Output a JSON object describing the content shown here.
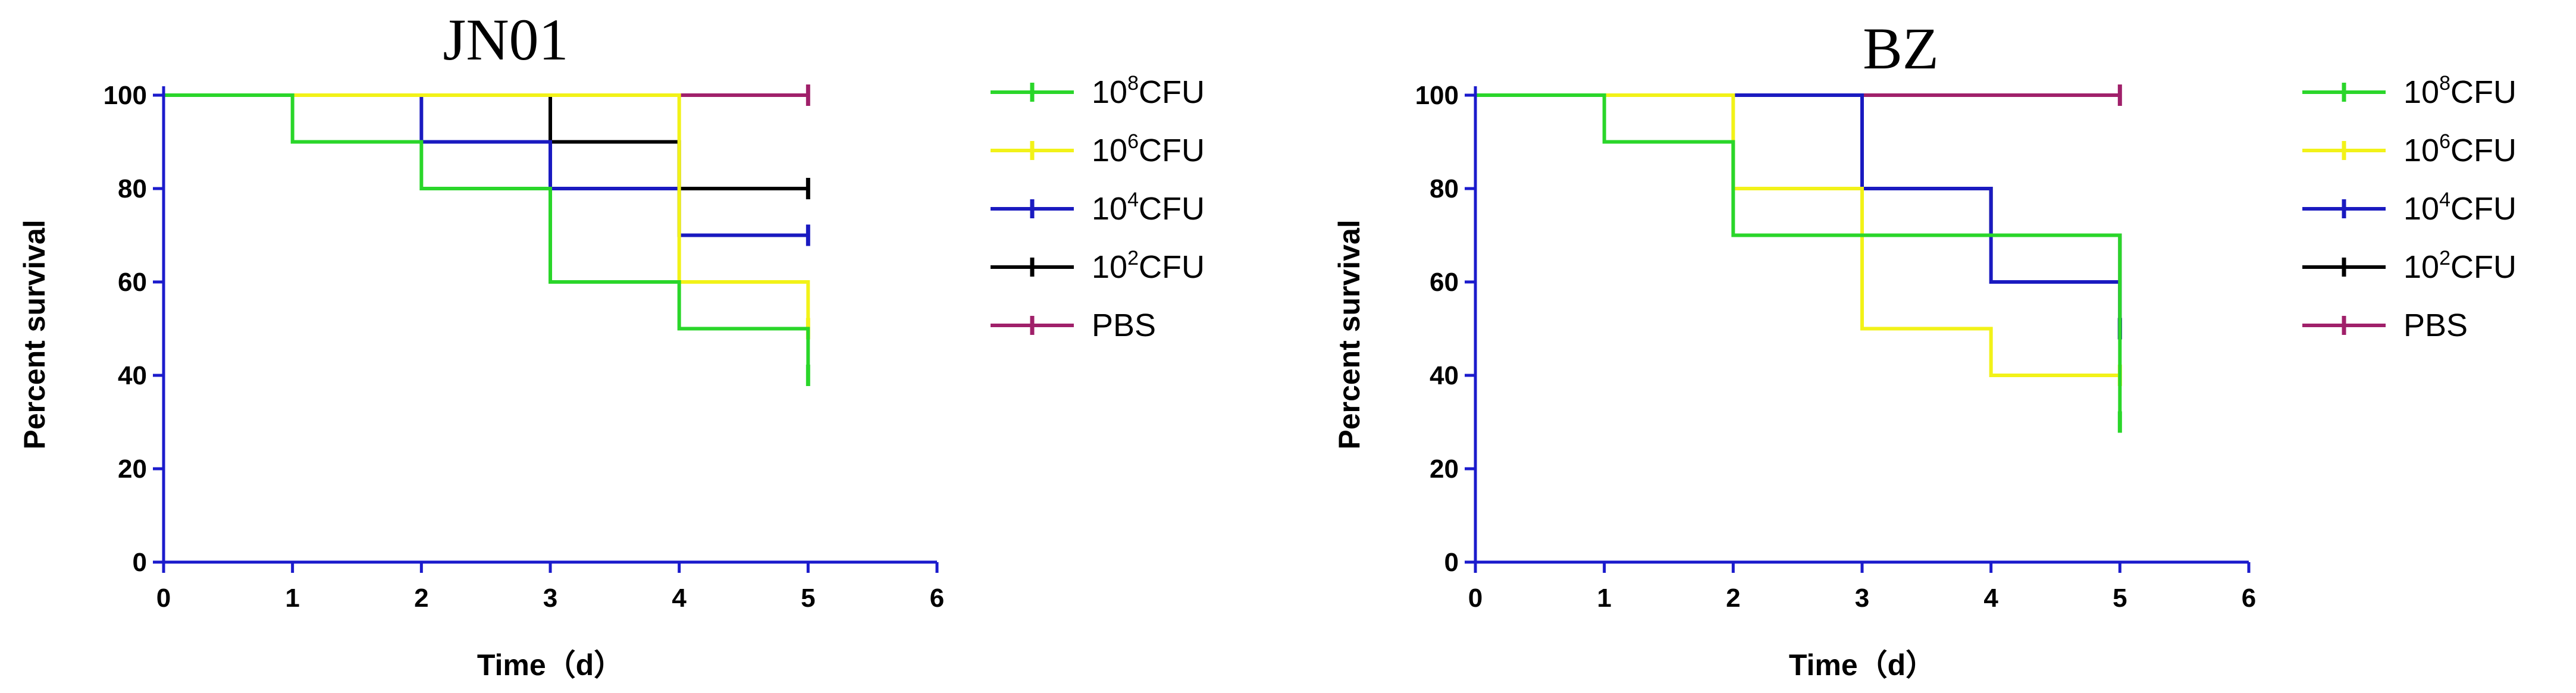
{
  "colors": {
    "axis": "#1b1bcc",
    "10^8": "#2ad62a",
    "10^6": "#f2f218",
    "10^4": "#1a1ac0",
    "10^2": "#000000",
    "PBS": "#a0206a"
  },
  "chart_data": [
    {
      "type": "line",
      "step": true,
      "title": "JN01",
      "xlabel": "Time（d）",
      "ylabel": "Percent survival",
      "xlim": [
        0,
        6
      ],
      "ylim": [
        0,
        100
      ],
      "xticks": [
        "0",
        "1",
        "2",
        "3",
        "4",
        "5",
        "6"
      ],
      "yticks": [
        "0",
        "20",
        "40",
        "60",
        "80",
        "100"
      ],
      "legend_position": "right",
      "series": [
        {
          "key": "10^8",
          "base": "10",
          "exp": "8",
          "unit": "CFU",
          "x": [
            0,
            1,
            2,
            3,
            4,
            5
          ],
          "y": [
            100,
            90,
            80,
            60,
            50,
            40
          ]
        },
        {
          "key": "10^6",
          "base": "10",
          "exp": "6",
          "unit": "CFU",
          "x": [
            0,
            4,
            5
          ],
          "y": [
            100,
            60,
            50
          ]
        },
        {
          "key": "10^4",
          "base": "10",
          "exp": "4",
          "unit": "CFU",
          "x": [
            0,
            2,
            3,
            4
          ],
          "y": [
            100,
            90,
            80,
            70
          ]
        },
        {
          "key": "10^2",
          "base": "10",
          "exp": "2",
          "unit": "CFU",
          "x": [
            0,
            3,
            4
          ],
          "y": [
            100,
            90,
            80
          ]
        },
        {
          "key": "PBS",
          "label": "PBS",
          "x": [
            0
          ],
          "y": [
            100
          ]
        }
      ]
    },
    {
      "type": "line",
      "step": true,
      "title": "BZ",
      "xlabel": "Time（d）",
      "ylabel": "Percent survival",
      "xlim": [
        0,
        6
      ],
      "ylim": [
        0,
        100
      ],
      "xticks": [
        "0",
        "1",
        "2",
        "3",
        "4",
        "5",
        "6"
      ],
      "yticks": [
        "0",
        "20",
        "40",
        "60",
        "80",
        "100"
      ],
      "legend_position": "right",
      "series": [
        {
          "key": "10^8",
          "base": "10",
          "exp": "8",
          "unit": "CFU",
          "x": [
            0,
            1,
            2,
            5
          ],
          "y": [
            100,
            90,
            70,
            30
          ]
        },
        {
          "key": "10^6",
          "base": "10",
          "exp": "6",
          "unit": "CFU",
          "x": [
            0,
            2,
            3,
            4
          ],
          "y": [
            100,
            80,
            50,
            40
          ]
        },
        {
          "key": "10^4",
          "base": "10",
          "exp": "4",
          "unit": "CFU",
          "x": [
            0,
            3,
            4,
            5
          ],
          "y": [
            100,
            80,
            60,
            50
          ]
        },
        {
          "key": "10^2",
          "base": "10",
          "exp": "2",
          "unit": "CFU",
          "x": [
            0,
            3,
            4,
            5
          ],
          "y": [
            100,
            80,
            70,
            50
          ]
        },
        {
          "key": "PBS",
          "label": "PBS",
          "x": [
            0
          ],
          "y": [
            100
          ]
        }
      ]
    }
  ]
}
